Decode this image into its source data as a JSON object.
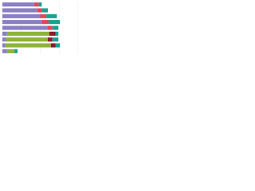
{
  "chart_data": {
    "type": "stacked-barh",
    "categories": [
      null,
      null,
      null,
      null,
      null,
      null,
      null,
      null,
      null
    ],
    "series": [
      {
        "name": null,
        "color": "#8a7fc4",
        "values": [
          42,
          46,
          50,
          52,
          60,
          6,
          5,
          4,
          6
        ]
      },
      {
        "name": null,
        "color": "#8db33a",
        "values": [
          0,
          0,
          0,
          0,
          0,
          56,
          55,
          60,
          10
        ]
      },
      {
        "name": null,
        "color": "#e0475c",
        "values": [
          6,
          6,
          8,
          9,
          6,
          0,
          0,
          0,
          0
        ]
      },
      {
        "name": null,
        "color": "#8b1a2b",
        "values": [
          0,
          0,
          0,
          0,
          0,
          8,
          6,
          6,
          0
        ]
      },
      {
        "name": null,
        "color": "#1aa08f",
        "values": [
          4,
          8,
          14,
          15,
          8,
          4,
          8,
          6,
          4
        ]
      }
    ],
    "xlim": [
      0,
      100
    ],
    "grid": true
  }
}
